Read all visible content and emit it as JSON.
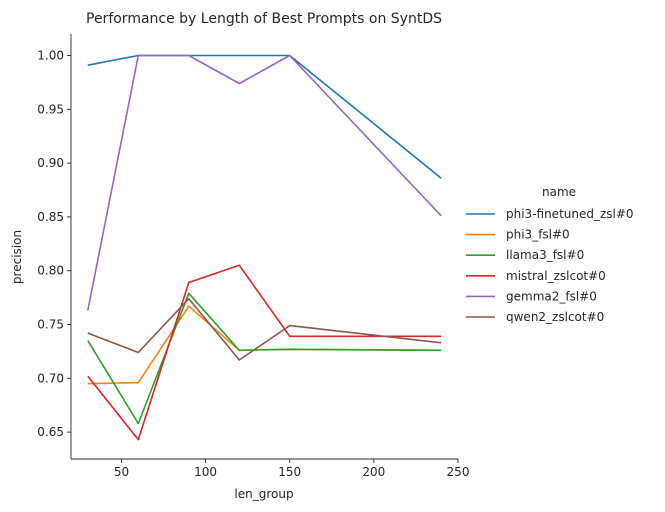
{
  "chart_data": {
    "type": "line",
    "title": "Performance by Length of Best Prompts on SyntDS",
    "xlabel": "len_group",
    "ylabel": "precision",
    "xlim": [
      20,
      250
    ],
    "ylim": [
      0.625,
      1.02
    ],
    "xticks": [
      50,
      100,
      150,
      200,
      250
    ],
    "xtick_labels": [
      "50",
      "100",
      "150",
      "200",
      "250"
    ],
    "yticks": [
      0.65,
      0.7,
      0.75,
      0.8,
      0.85,
      0.9,
      0.95,
      1.0
    ],
    "ytick_labels": [
      "0.65",
      "0.70",
      "0.75",
      "0.80",
      "0.85",
      "0.90",
      "0.95",
      "1.00"
    ],
    "grid": false,
    "legend_title": "name",
    "legend_position": "right",
    "series": [
      {
        "name": "phi3-finetuned_zsl#0",
        "color": "#1f77b4",
        "x": [
          30,
          60,
          90,
          120,
          150,
          240
        ],
        "y": [
          0.991,
          1.0,
          1.0,
          1.0,
          1.0,
          0.886
        ]
      },
      {
        "name": "phi3_fsl#0",
        "color": "#ff7f0e",
        "x": [
          30,
          60,
          90,
          120,
          150,
          240
        ],
        "y": [
          0.695,
          0.696,
          0.767,
          0.726,
          0.727,
          0.726
        ]
      },
      {
        "name": "llama3_fsl#0",
        "color": "#2ca02c",
        "x": [
          30,
          60,
          90,
          120,
          150,
          240
        ],
        "y": [
          0.735,
          0.658,
          0.779,
          0.726,
          0.727,
          0.726
        ]
      },
      {
        "name": "mistral_zslcot#0",
        "color": "#d62728",
        "x": [
          30,
          60,
          90,
          120,
          150,
          240
        ],
        "y": [
          0.702,
          0.643,
          0.789,
          0.805,
          0.739,
          0.739
        ]
      },
      {
        "name": "gemma2_fsl#0",
        "color": "#9467bd",
        "x": [
          30,
          60,
          90,
          120,
          150,
          240
        ],
        "y": [
          0.763,
          1.0,
          1.0,
          0.974,
          1.0,
          0.851
        ]
      },
      {
        "name": "qwen2_zslcot#0",
        "color": "#8c564b",
        "x": [
          30,
          60,
          90,
          120,
          150,
          240
        ],
        "y": [
          0.742,
          0.724,
          0.774,
          0.717,
          0.749,
          0.733
        ]
      }
    ]
  }
}
